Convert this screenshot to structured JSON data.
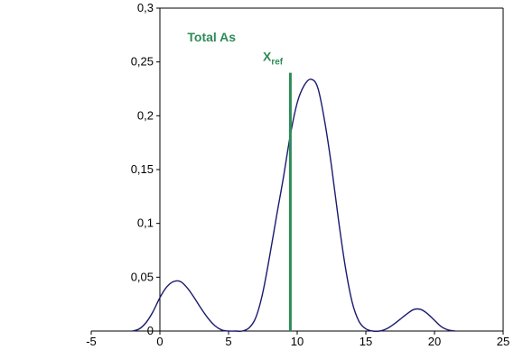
{
  "chart_data": {
    "type": "line",
    "title": "",
    "xlabel": "",
    "ylabel": "",
    "xlim": [
      -5,
      25
    ],
    "ylim": [
      0,
      0.3
    ],
    "x_ticks": [
      -5,
      0,
      5,
      10,
      15,
      20,
      25
    ],
    "x_tick_labels": [
      "-5",
      "0",
      "5",
      "10",
      "15",
      "20",
      "25"
    ],
    "y_ticks": [
      0,
      0.05,
      0.1,
      0.15,
      0.2,
      0.25,
      0.3
    ],
    "y_tick_labels": [
      "0",
      "0,05",
      "0,1",
      "0,15",
      "0,2",
      "0,25",
      "0,3"
    ],
    "grid": false,
    "legend": "none",
    "series": [
      {
        "color": "#1a1a6e",
        "x": [
          -2,
          -1.5,
          -1,
          -0.5,
          0,
          0.5,
          1,
          1.5,
          2,
          2.5,
          3,
          3.5,
          4,
          4.5,
          5,
          5.5,
          6,
          6.5,
          7,
          7.5,
          8,
          8.5,
          9,
          9.5,
          10,
          10.5,
          11,
          11.5,
          12,
          12.5,
          13,
          13.5,
          14,
          14.5,
          15,
          15.5,
          16,
          16.5,
          17,
          17.5,
          18,
          18.5,
          19,
          19.5,
          20,
          20.5,
          21,
          21.5
        ],
        "y": [
          0,
          0.002,
          0.008,
          0.018,
          0.031,
          0.041,
          0.046,
          0.046,
          0.04,
          0.031,
          0.021,
          0.012,
          0.005,
          0.001,
          0,
          0,
          0,
          0.003,
          0.013,
          0.036,
          0.07,
          0.107,
          0.143,
          0.182,
          0.212,
          0.228,
          0.234,
          0.226,
          0.195,
          0.153,
          0.104,
          0.06,
          0.027,
          0.009,
          0.002,
          0,
          0,
          0.002,
          0.006,
          0.011,
          0.016,
          0.02,
          0.02,
          0.016,
          0.01,
          0.004,
          0.001,
          0
        ]
      }
    ],
    "reference_line": {
      "x": 9.5,
      "y_top": 0.24,
      "color": "#2e8b57"
    },
    "annotations": [
      {
        "text": "Total As",
        "x": 2,
        "y": 0.269,
        "color": "#2e8b57"
      },
      {
        "text": "X",
        "sub": "ref",
        "x": 7.5,
        "y": 0.251,
        "color": "#2e8b57"
      }
    ]
  }
}
